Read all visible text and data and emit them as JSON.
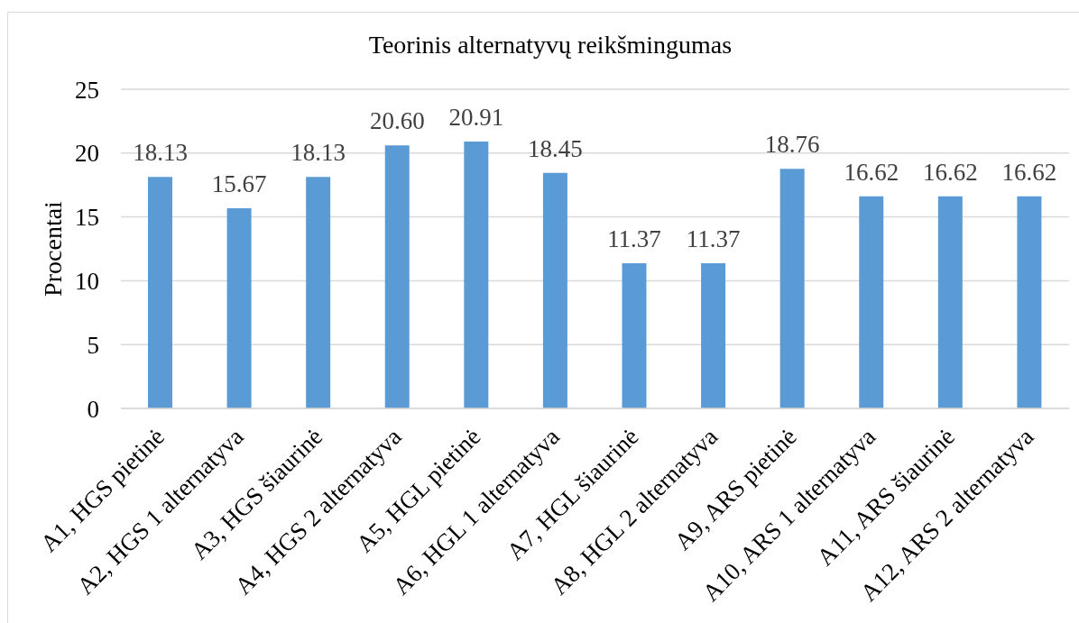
{
  "chart_data": {
    "type": "bar",
    "title": "Teorinis alternatyvų reikšmingumas",
    "ylabel": "Procentai",
    "categories": [
      "A1, HGS pietinė",
      "A2, HGS 1 alternatyva",
      "A3, HGS šiaurinė",
      "A4, HGS 2 alternatyva",
      "A5, HGL pietinė",
      "A6, HGL 1 alternatyva",
      "A7, HGL šiaurinė",
      "A8, HGL 2 alternatyva",
      "A9, ARS pietinė",
      "A10, ARS 1 alternatyva",
      "A11, ARS šiaurinė",
      "A12, ARS 2 alternatyva"
    ],
    "values": [
      18.13,
      15.67,
      18.13,
      20.6,
      20.91,
      18.45,
      11.37,
      11.37,
      18.76,
      16.62,
      16.62,
      16.62
    ],
    "value_labels": [
      "18.13",
      "15.67",
      "18.13",
      "20.60",
      "20.91",
      "18.45",
      "11.37",
      "11.37",
      "18.76",
      "16.62",
      "16.62",
      "16.62"
    ],
    "color": "#5b9bd5",
    "ylim": [
      0,
      25
    ],
    "yticks": [
      0,
      5,
      10,
      15,
      20,
      25
    ],
    "grid": "y"
  }
}
